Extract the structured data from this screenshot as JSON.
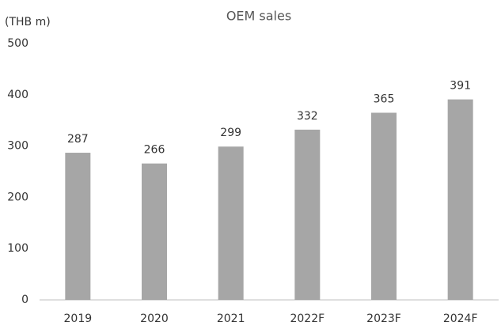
{
  "chart_data": {
    "type": "bar",
    "title": "OEM sales",
    "y_label": "(THB m)",
    "categories": [
      "2019",
      "2020",
      "2021",
      "2022F",
      "2023F",
      "2024F"
    ],
    "values": [
      287,
      266,
      299,
      332,
      365,
      391
    ],
    "color": "#a6a6a6",
    "ylim": [
      0,
      500
    ],
    "yticks": [
      0,
      100,
      200,
      300,
      400,
      500
    ],
    "grid": false
  }
}
